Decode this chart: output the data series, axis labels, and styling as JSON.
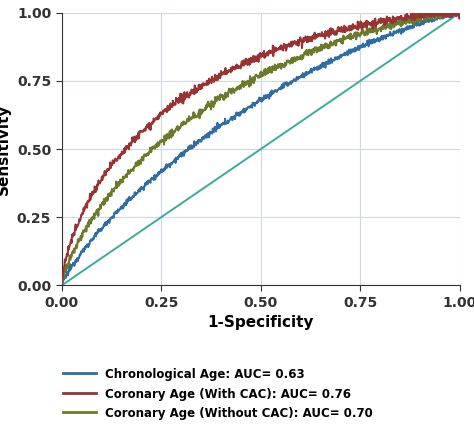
{
  "title": "",
  "xlabel": "1-Specificity",
  "ylabel": "Sensitivity",
  "xlim": [
    0.0,
    1.0
  ],
  "ylim": [
    0.0,
    1.0
  ],
  "xticks": [
    0.0,
    0.25,
    0.5,
    0.75,
    1.0
  ],
  "yticks": [
    0.0,
    0.25,
    0.5,
    0.75,
    1.0
  ],
  "background_color": "#ffffff",
  "grid_color": "#cdd8e3",
  "legend": [
    {
      "label": "Chronological Age: AUC= 0.63",
      "color": "#2e6da4",
      "lw": 1.4
    },
    {
      "label": "Coronary Age (With CAC): AUC= 0.76",
      "color": "#993333",
      "lw": 1.4
    },
    {
      "label": "Coronary Age (Without CAC): AUC= 0.70",
      "color": "#6b7a2a",
      "lw": 1.4
    }
  ],
  "ref_line_color": "#3aaba0",
  "auc_chron": 0.63,
  "auc_with_cac": 0.76,
  "auc_without_cac": 0.7,
  "n_points": 1000,
  "figsize": [
    4.74,
    4.26
  ],
  "dpi": 100
}
